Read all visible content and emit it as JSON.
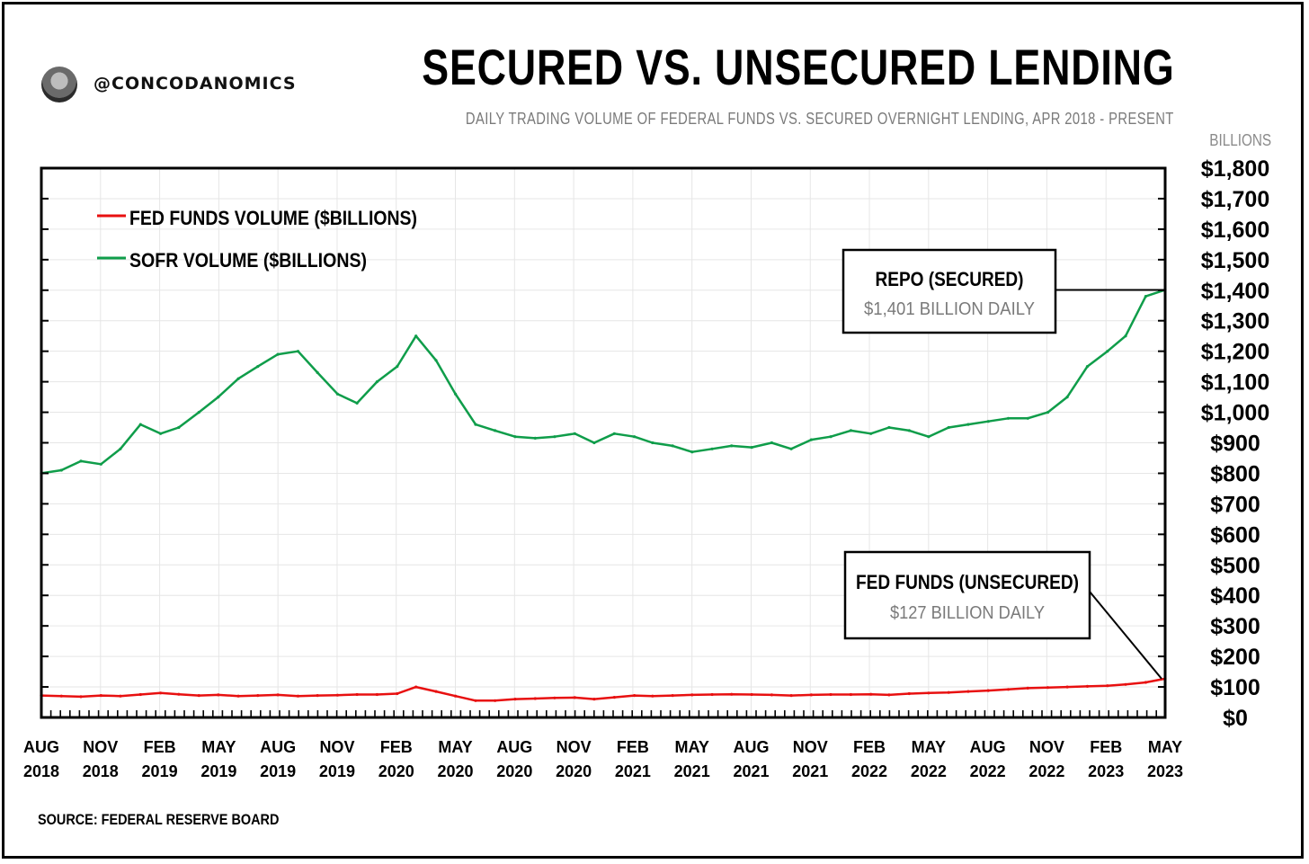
{
  "header": {
    "handle": "@CONCODANOMICS",
    "title": "SECURED VS. UNSECURED LENDING",
    "subtitle": "DAILY TRADING VOLUME OF FEDERAL FUNDS VS. SECURED OVERNIGHT LENDING, APR 2018 - PRESENT",
    "units": "BILLIONS"
  },
  "footer": {
    "source": "SOURCE: FEDERAL RESERVE BOARD"
  },
  "colors": {
    "fed_funds": "#e81010",
    "sofr": "#0f9d4a",
    "grid": "#e6e6e6"
  },
  "chart_data": {
    "type": "line",
    "title": "SECURED VS. UNSECURED LENDING",
    "subtitle": "DAILY TRADING VOLUME OF FEDERAL FUNDS VS. SECURED OVERNIGHT LENDING, APR 2018 - PRESENT",
    "ylabel": "BILLIONS",
    "ylim": [
      0,
      1800
    ],
    "y_ticks": [
      "$0",
      "$100",
      "$200",
      "$300",
      "$400",
      "$500",
      "$600",
      "$700",
      "$800",
      "$900",
      "$1,000",
      "$1,100",
      "$1,200",
      "$1,300",
      "$1,400",
      "$1,500",
      "$1,600",
      "$1,700",
      "$1,800"
    ],
    "x_ticks": [
      {
        "month": "AUG",
        "year": "2018"
      },
      {
        "month": "NOV",
        "year": "2018"
      },
      {
        "month": "FEB",
        "year": "2019"
      },
      {
        "month": "MAY",
        "year": "2019"
      },
      {
        "month": "AUG",
        "year": "2019"
      },
      {
        "month": "NOV",
        "year": "2019"
      },
      {
        "month": "FEB",
        "year": "2020"
      },
      {
        "month": "MAY",
        "year": "2020"
      },
      {
        "month": "AUG",
        "year": "2020"
      },
      {
        "month": "NOV",
        "year": "2020"
      },
      {
        "month": "FEB",
        "year": "2021"
      },
      {
        "month": "MAY",
        "year": "2021"
      },
      {
        "month": "AUG",
        "year": "2021"
      },
      {
        "month": "NOV",
        "year": "2021"
      },
      {
        "month": "FEB",
        "year": "2022"
      },
      {
        "month": "MAY",
        "year": "2022"
      },
      {
        "month": "AUG",
        "year": "2022"
      },
      {
        "month": "NOV",
        "year": "2022"
      },
      {
        "month": "FEB",
        "year": "2023"
      },
      {
        "month": "MAY",
        "year": "2023"
      }
    ],
    "grid": true,
    "legend_position": "top-left",
    "series": [
      {
        "name": "FED FUNDS VOLUME ($BILLIONS)",
        "x": [
          "2018-08",
          "2018-09",
          "2018-10",
          "2018-11",
          "2018-12",
          "2019-01",
          "2019-02",
          "2019-03",
          "2019-04",
          "2019-05",
          "2019-06",
          "2019-07",
          "2019-08",
          "2019-09",
          "2019-10",
          "2019-11",
          "2019-12",
          "2020-01",
          "2020-02",
          "2020-03",
          "2020-04",
          "2020-05",
          "2020-06",
          "2020-07",
          "2020-08",
          "2020-09",
          "2020-10",
          "2020-11",
          "2020-12",
          "2021-01",
          "2021-02",
          "2021-03",
          "2021-04",
          "2021-05",
          "2021-06",
          "2021-07",
          "2021-08",
          "2021-09",
          "2021-10",
          "2021-11",
          "2021-12",
          "2022-01",
          "2022-02",
          "2022-03",
          "2022-04",
          "2022-05",
          "2022-06",
          "2022-07",
          "2022-08",
          "2022-09",
          "2022-10",
          "2022-11",
          "2022-12",
          "2023-01",
          "2023-02",
          "2023-03",
          "2023-04",
          "2023-05"
        ],
        "values": [
          72,
          70,
          68,
          72,
          70,
          75,
          80,
          76,
          72,
          74,
          70,
          72,
          74,
          70,
          72,
          73,
          75,
          75,
          78,
          100,
          85,
          70,
          55,
          55,
          60,
          62,
          64,
          65,
          60,
          66,
          72,
          70,
          72,
          74,
          75,
          76,
          75,
          74,
          72,
          74,
          75,
          75,
          76,
          74,
          78,
          80,
          82,
          85,
          88,
          92,
          96,
          98,
          100,
          102,
          104,
          108,
          115,
          127
        ]
      },
      {
        "name": "SOFR VOLUME ($BILLIONS)",
        "x": [
          "2018-08",
          "2018-09",
          "2018-10",
          "2018-11",
          "2018-12",
          "2019-01",
          "2019-02",
          "2019-03",
          "2019-04",
          "2019-05",
          "2019-06",
          "2019-07",
          "2019-08",
          "2019-09",
          "2019-10",
          "2019-11",
          "2019-12",
          "2020-01",
          "2020-02",
          "2020-03",
          "2020-04",
          "2020-05",
          "2020-06",
          "2020-07",
          "2020-08",
          "2020-09",
          "2020-10",
          "2020-11",
          "2020-12",
          "2021-01",
          "2021-02",
          "2021-03",
          "2021-04",
          "2021-05",
          "2021-06",
          "2021-07",
          "2021-08",
          "2021-09",
          "2021-10",
          "2021-11",
          "2021-12",
          "2022-01",
          "2022-02",
          "2022-03",
          "2022-04",
          "2022-05",
          "2022-06",
          "2022-07",
          "2022-08",
          "2022-09",
          "2022-10",
          "2022-11",
          "2022-12",
          "2023-01",
          "2023-02",
          "2023-03",
          "2023-04",
          "2023-05"
        ],
        "values": [
          800,
          810,
          840,
          830,
          880,
          960,
          930,
          950,
          1000,
          1050,
          1110,
          1150,
          1190,
          1200,
          1130,
          1060,
          1030,
          1100,
          1150,
          1250,
          1170,
          1060,
          960,
          940,
          920,
          915,
          920,
          930,
          900,
          930,
          920,
          900,
          890,
          870,
          880,
          890,
          885,
          900,
          880,
          910,
          920,
          940,
          930,
          950,
          940,
          920,
          950,
          960,
          970,
          980,
          980,
          1000,
          1050,
          1150,
          1200,
          1250,
          1380,
          1401
        ]
      }
    ]
  },
  "legend": {
    "fed_funds_label": "FED FUNDS VOLUME ($BILLIONS)",
    "sofr_label": "SOFR VOLUME ($BILLIONS)"
  },
  "annotations": {
    "repo": {
      "title": "REPO (SECURED)",
      "subtitle": "$1,401 BILLION DAILY",
      "value": 1401
    },
    "fed_funds": {
      "title": "FED FUNDS (UNSECURED)",
      "subtitle": "$127 BILLION DAILY",
      "value": 127
    }
  }
}
